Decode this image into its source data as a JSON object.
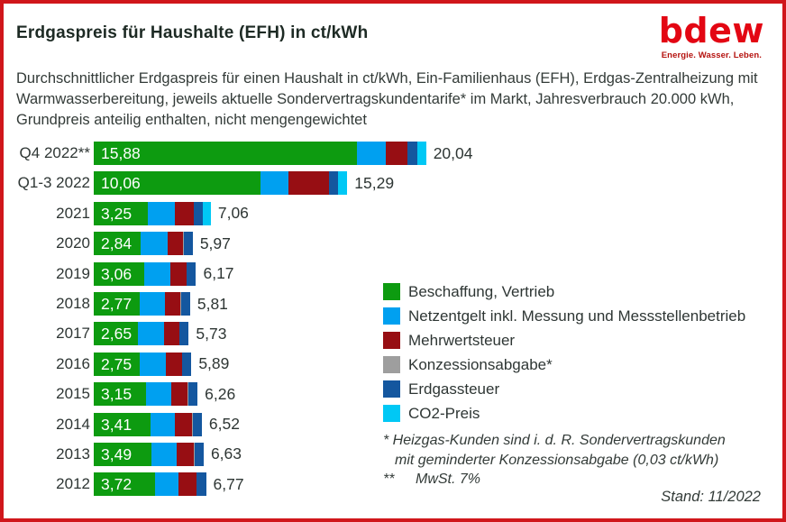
{
  "header": {
    "title": "Erdgaspreis für Haushalte (EFH) in ct/kWh",
    "logo": {
      "word": "bdew",
      "tagline": "Energie. Wasser. Leben."
    }
  },
  "subtitle": "Durchschnittlicher Erdgaspreis für einen Haushalt in ct/kWh, Ein-Familienhaus (EFH), Erdgas-Zentralheizung mit Warmwasserbereitung, jeweils aktuelle Sondervertragskundentarife* im Markt, Jahresverbrauch 20.000 kWh, Grundpreis anteilig enthalten, nicht mengengewichtet",
  "chart_data": {
    "type": "bar",
    "orientation": "horizontal-stacked",
    "unit": "ct/kWh",
    "categories": [
      "Q4 2022**",
      "Q1-3 2022",
      "2021",
      "2020",
      "2019",
      "2018",
      "2017",
      "2016",
      "2015",
      "2014",
      "2013",
      "2012"
    ],
    "series": [
      {
        "key": "beschaffung",
        "name": "Beschaffung, Vertrieb",
        "color": "#0d9b10",
        "values": [
          15.88,
          10.06,
          3.25,
          2.84,
          3.06,
          2.77,
          2.65,
          2.75,
          3.15,
          3.41,
          3.49,
          3.72
        ]
      },
      {
        "key": "netzentgelt",
        "name": "Netzentgelt inkl. Messung und Messstellenbetrieb",
        "color": "#00a0f0",
        "values": [
          1.72,
          1.66,
          1.64,
          1.63,
          1.54,
          1.53,
          1.59,
          1.62,
          1.53,
          1.49,
          1.5,
          1.39
        ]
      },
      {
        "key": "mehrwertsteuer",
        "name": "Mehrwertsteuer",
        "color": "#970e13",
        "values": [
          1.31,
          2.44,
          1.13,
          0.92,
          0.99,
          0.93,
          0.91,
          0.94,
          1.0,
          1.04,
          1.06,
          1.08
        ]
      },
      {
        "key": "konzessionsabgabe",
        "name": "Konzessionsabgabe*",
        "color": "#9e9e9e",
        "values": [
          0.03,
          0.03,
          0.03,
          0.03,
          0.03,
          0.03,
          0.03,
          0.03,
          0.03,
          0.03,
          0.03,
          0.03
        ]
      },
      {
        "key": "erdgassteuer",
        "name": "Erdgassteuer",
        "color": "#14579f",
        "values": [
          0.55,
          0.55,
          0.55,
          0.55,
          0.55,
          0.55,
          0.55,
          0.55,
          0.55,
          0.55,
          0.55,
          0.55
        ]
      },
      {
        "key": "co2-preis",
        "name": "CO2-Preis",
        "color": "#00c8f5",
        "values": [
          0.55,
          0.55,
          0.46,
          0,
          0,
          0,
          0,
          0,
          0,
          0,
          0,
          0
        ]
      }
    ],
    "bar_value_labels": [
      "15,88",
      "10,06",
      "3,25",
      "2,84",
      "3,06",
      "2,77",
      "2,65",
      "2,75",
      "3,15",
      "3,41",
      "3,49",
      "3,72"
    ],
    "total_labels": [
      "20,04",
      "15,29",
      "7,06",
      "5,97",
      "6,17",
      "5,81",
      "5,73",
      "5,89",
      "6,26",
      "6,52",
      "6,63",
      "6,77"
    ],
    "totals": [
      20.04,
      15.29,
      7.06,
      5.97,
      6.17,
      5.81,
      5.73,
      5.89,
      6.26,
      6.52,
      6.63,
      6.77
    ],
    "xlim": [
      0,
      20.04
    ],
    "grid": false,
    "legend_position": "right-middle"
  },
  "footnotes": {
    "line1": "* Heizgas-Kunden sind i. d. R. Sondervertragskunden",
    "line2": "mit geminderter Konzessionsabgabe (0,03 ct/kWh)",
    "line3_marker": "**",
    "line3_text": "MwSt. 7%"
  },
  "stand": "Stand: 11/2022",
  "colors": {
    "frame_border": "#d0161b",
    "logo_red": "#e30613",
    "tagline_red": "#b5120e",
    "title_text": "#1d2a24",
    "body_text": "#333b38"
  }
}
